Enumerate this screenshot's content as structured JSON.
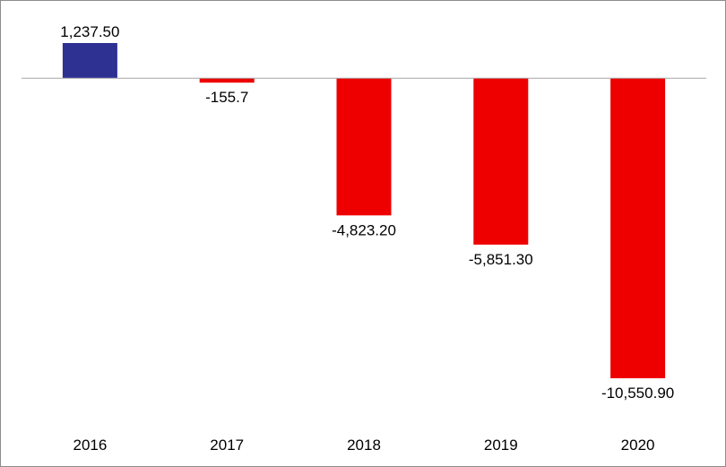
{
  "chart_data": {
    "type": "bar",
    "categories": [
      "2016",
      "2017",
      "2018",
      "2019",
      "2020"
    ],
    "values": [
      1237.5,
      -155.7,
      -4823.2,
      -5851.3,
      -10550.9
    ],
    "data_labels": [
      "1,237.50",
      "-155.7",
      "-4,823.20",
      "-5,851.30",
      "-10,550.90"
    ],
    "colors": {
      "positive": "#2E3192",
      "negative": "#EE0000",
      "zero_line": "#a6a6a6"
    },
    "title": "",
    "xlabel": "",
    "ylabel": "",
    "ylim": [
      -10550.9,
      1237.5
    ],
    "grid": false,
    "legend": "none"
  }
}
